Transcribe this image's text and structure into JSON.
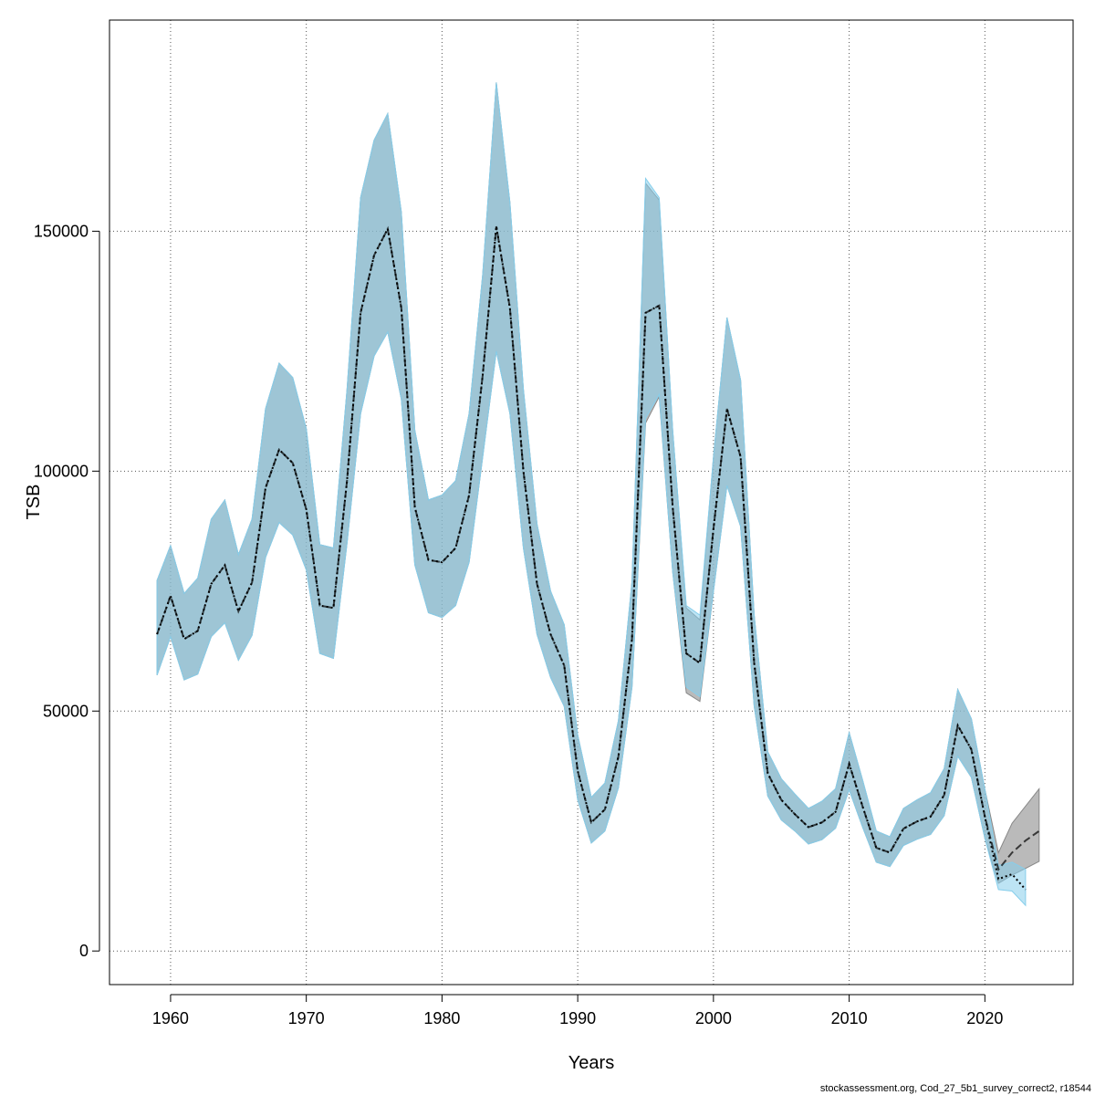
{
  "chart_data": {
    "type": "area",
    "xlabel": "Years",
    "ylabel": "TSB",
    "xlim": [
      1955.5,
      2026.5
    ],
    "ylim": [
      -7000,
      194000
    ],
    "x_ticks": [
      1960,
      1970,
      1980,
      1990,
      2000,
      2010,
      2020
    ],
    "x_tick_labels": [
      "1960",
      "1970",
      "1980",
      "1990",
      "2000",
      "2010",
      "2020"
    ],
    "y_ticks": [
      0,
      50000,
      100000,
      150000
    ],
    "y_tick_labels": [
      "0",
      "50000",
      "100000",
      "150000"
    ],
    "grid": true,
    "footer": "stockassessment.org, Cod_27_5b1_survey_correct2, r18544",
    "colors": {
      "reference_band": "#8c8c8c",
      "reference_line": "#000000",
      "model_band": "#87ceeb",
      "model_line": "#000000",
      "grid": "#555555"
    },
    "series": [
      {
        "role": "reference",
        "style": "solid",
        "x": [
          1959,
          1960,
          1961,
          1962,
          1963,
          1964,
          1965,
          1966,
          1967,
          1968,
          1969,
          1970,
          1971,
          1972,
          1973,
          1974,
          1975,
          1976,
          1977,
          1978,
          1979,
          1980,
          1981,
          1982,
          1983,
          1984,
          1985,
          1986,
          1987,
          1988,
          1989,
          1990,
          1991,
          1992,
          1993,
          1994,
          1995,
          1996,
          1997,
          1998,
          1999,
          2000,
          2001,
          2002,
          2003,
          2004,
          2005,
          2006,
          2007,
          2008,
          2009,
          2010,
          2011,
          2012,
          2013,
          2014,
          2015,
          2016,
          2017,
          2018,
          2019,
          2020,
          2021,
          2022,
          2023,
          2024
        ],
        "y": [
          66000,
          74000,
          65000,
          66700,
          76500,
          80400,
          70800,
          76800,
          96500,
          104500,
          101700,
          92000,
          72000,
          71500,
          98000,
          133000,
          145000,
          150500,
          134000,
          92500,
          81500,
          81000,
          84000,
          95000,
          120000,
          151000,
          134000,
          100000,
          76500,
          66000,
          59500,
          37500,
          26800,
          29500,
          40500,
          65000,
          133000,
          134500,
          92500,
          62000,
          60000,
          88000,
          113000,
          103000,
          60000,
          37000,
          31500,
          28500,
          25800,
          26800,
          29000,
          39000,
          30000,
          21500,
          20500,
          25500,
          27000,
          28000,
          32500,
          47000,
          42000,
          28000,
          17000,
          20500,
          23000,
          25000
        ],
        "lower": [
          57500,
          65500,
          56500,
          57700,
          65500,
          68400,
          60600,
          65800,
          82000,
          89300,
          86700,
          79400,
          62000,
          61000,
          85000,
          112000,
          124000,
          129000,
          115000,
          80500,
          70500,
          69500,
          72000,
          81000,
          103000,
          125000,
          112000,
          84000,
          66000,
          57000,
          51000,
          31500,
          22500,
          25000,
          34000,
          55000,
          110000,
          115500,
          79000,
          53800,
          52000,
          75000,
          97000,
          88500,
          51000,
          32300,
          27300,
          25000,
          22300,
          23200,
          25600,
          33600,
          25700,
          18500,
          17600,
          22000,
          23300,
          24300,
          28200,
          40600,
          36200,
          23500,
          14100,
          15800,
          17200,
          18700
        ],
        "upper": [
          77200,
          84500,
          74500,
          77700,
          90000,
          94000,
          82600,
          90000,
          113000,
          122500,
          119500,
          108800,
          84700,
          84000,
          117000,
          157000,
          169000,
          174500,
          154000,
          108500,
          94000,
          95000,
          98000,
          112000,
          141000,
          181000,
          156000,
          117000,
          89000,
          75000,
          68000,
          45000,
          32000,
          35000,
          48000,
          77000,
          160000,
          156500,
          108500,
          71500,
          69000,
          103000,
          132000,
          119000,
          70000,
          41500,
          35900,
          32700,
          29700,
          31200,
          33800,
          45500,
          35500,
          25000,
          23800,
          29700,
          31500,
          33000,
          38000,
          54500,
          48400,
          33700,
          20500,
          26600,
          30200,
          33800
        ]
      },
      {
        "role": "model",
        "style": "dotted",
        "x": [
          1959,
          1960,
          1961,
          1962,
          1963,
          1964,
          1965,
          1966,
          1967,
          1968,
          1969,
          1970,
          1971,
          1972,
          1973,
          1974,
          1975,
          1976,
          1977,
          1978,
          1979,
          1980,
          1981,
          1982,
          1983,
          1984,
          1985,
          1986,
          1987,
          1988,
          1989,
          1990,
          1991,
          1992,
          1993,
          1994,
          1995,
          1996,
          1997,
          1998,
          1999,
          2000,
          2001,
          2002,
          2003,
          2004,
          2005,
          2006,
          2007,
          2008,
          2009,
          2010,
          2011,
          2012,
          2013,
          2014,
          2015,
          2016,
          2017,
          2018,
          2019,
          2020,
          2021,
          2022,
          2023
        ],
        "y": [
          66000,
          74000,
          65000,
          66700,
          76500,
          80400,
          70800,
          76800,
          96500,
          104500,
          101700,
          92000,
          72000,
          71500,
          98000,
          133000,
          145000,
          150500,
          134000,
          92500,
          81500,
          81000,
          84000,
          95000,
          120000,
          151000,
          134000,
          100000,
          76500,
          66000,
          59500,
          37500,
          26800,
          29500,
          40500,
          65000,
          133000,
          134500,
          92500,
          62000,
          60000,
          88000,
          113000,
          103000,
          60000,
          37000,
          31500,
          28500,
          25800,
          26800,
          29000,
          39000,
          30000,
          21500,
          20500,
          25500,
          27000,
          28000,
          32500,
          47000,
          42000,
          28000,
          15000,
          16000,
          12800
        ],
        "lower": [
          57500,
          65500,
          56500,
          57700,
          65500,
          68400,
          60600,
          65800,
          82000,
          89300,
          86700,
          79400,
          62000,
          61000,
          85000,
          112000,
          124000,
          129000,
          115000,
          80500,
          70500,
          69500,
          72000,
          81000,
          103000,
          125000,
          112000,
          84000,
          66000,
          57000,
          51000,
          31500,
          22500,
          25000,
          34000,
          55000,
          111000,
          116000,
          79000,
          55000,
          53000,
          75000,
          97000,
          88500,
          51000,
          32300,
          27300,
          25000,
          22300,
          23200,
          25600,
          33600,
          25700,
          18500,
          17600,
          22000,
          23300,
          24300,
          28200,
          40600,
          36200,
          23500,
          12800,
          12500,
          9500
        ],
        "upper": [
          77200,
          84500,
          74500,
          77700,
          90000,
          94000,
          82600,
          90000,
          113000,
          122500,
          119500,
          108800,
          84700,
          84000,
          117000,
          157000,
          169000,
          174500,
          154000,
          108500,
          94000,
          95000,
          98000,
          112000,
          141000,
          181000,
          156000,
          117000,
          89000,
          75000,
          68000,
          45000,
          32000,
          35000,
          48000,
          77000,
          161000,
          157000,
          108500,
          72000,
          70000,
          103000,
          132000,
          119000,
          70000,
          41500,
          35900,
          32700,
          29700,
          31200,
          33800,
          45500,
          35500,
          25000,
          23800,
          29700,
          31500,
          33000,
          38000,
          54500,
          48400,
          33700,
          17800,
          18500,
          17000
        ]
      }
    ]
  }
}
